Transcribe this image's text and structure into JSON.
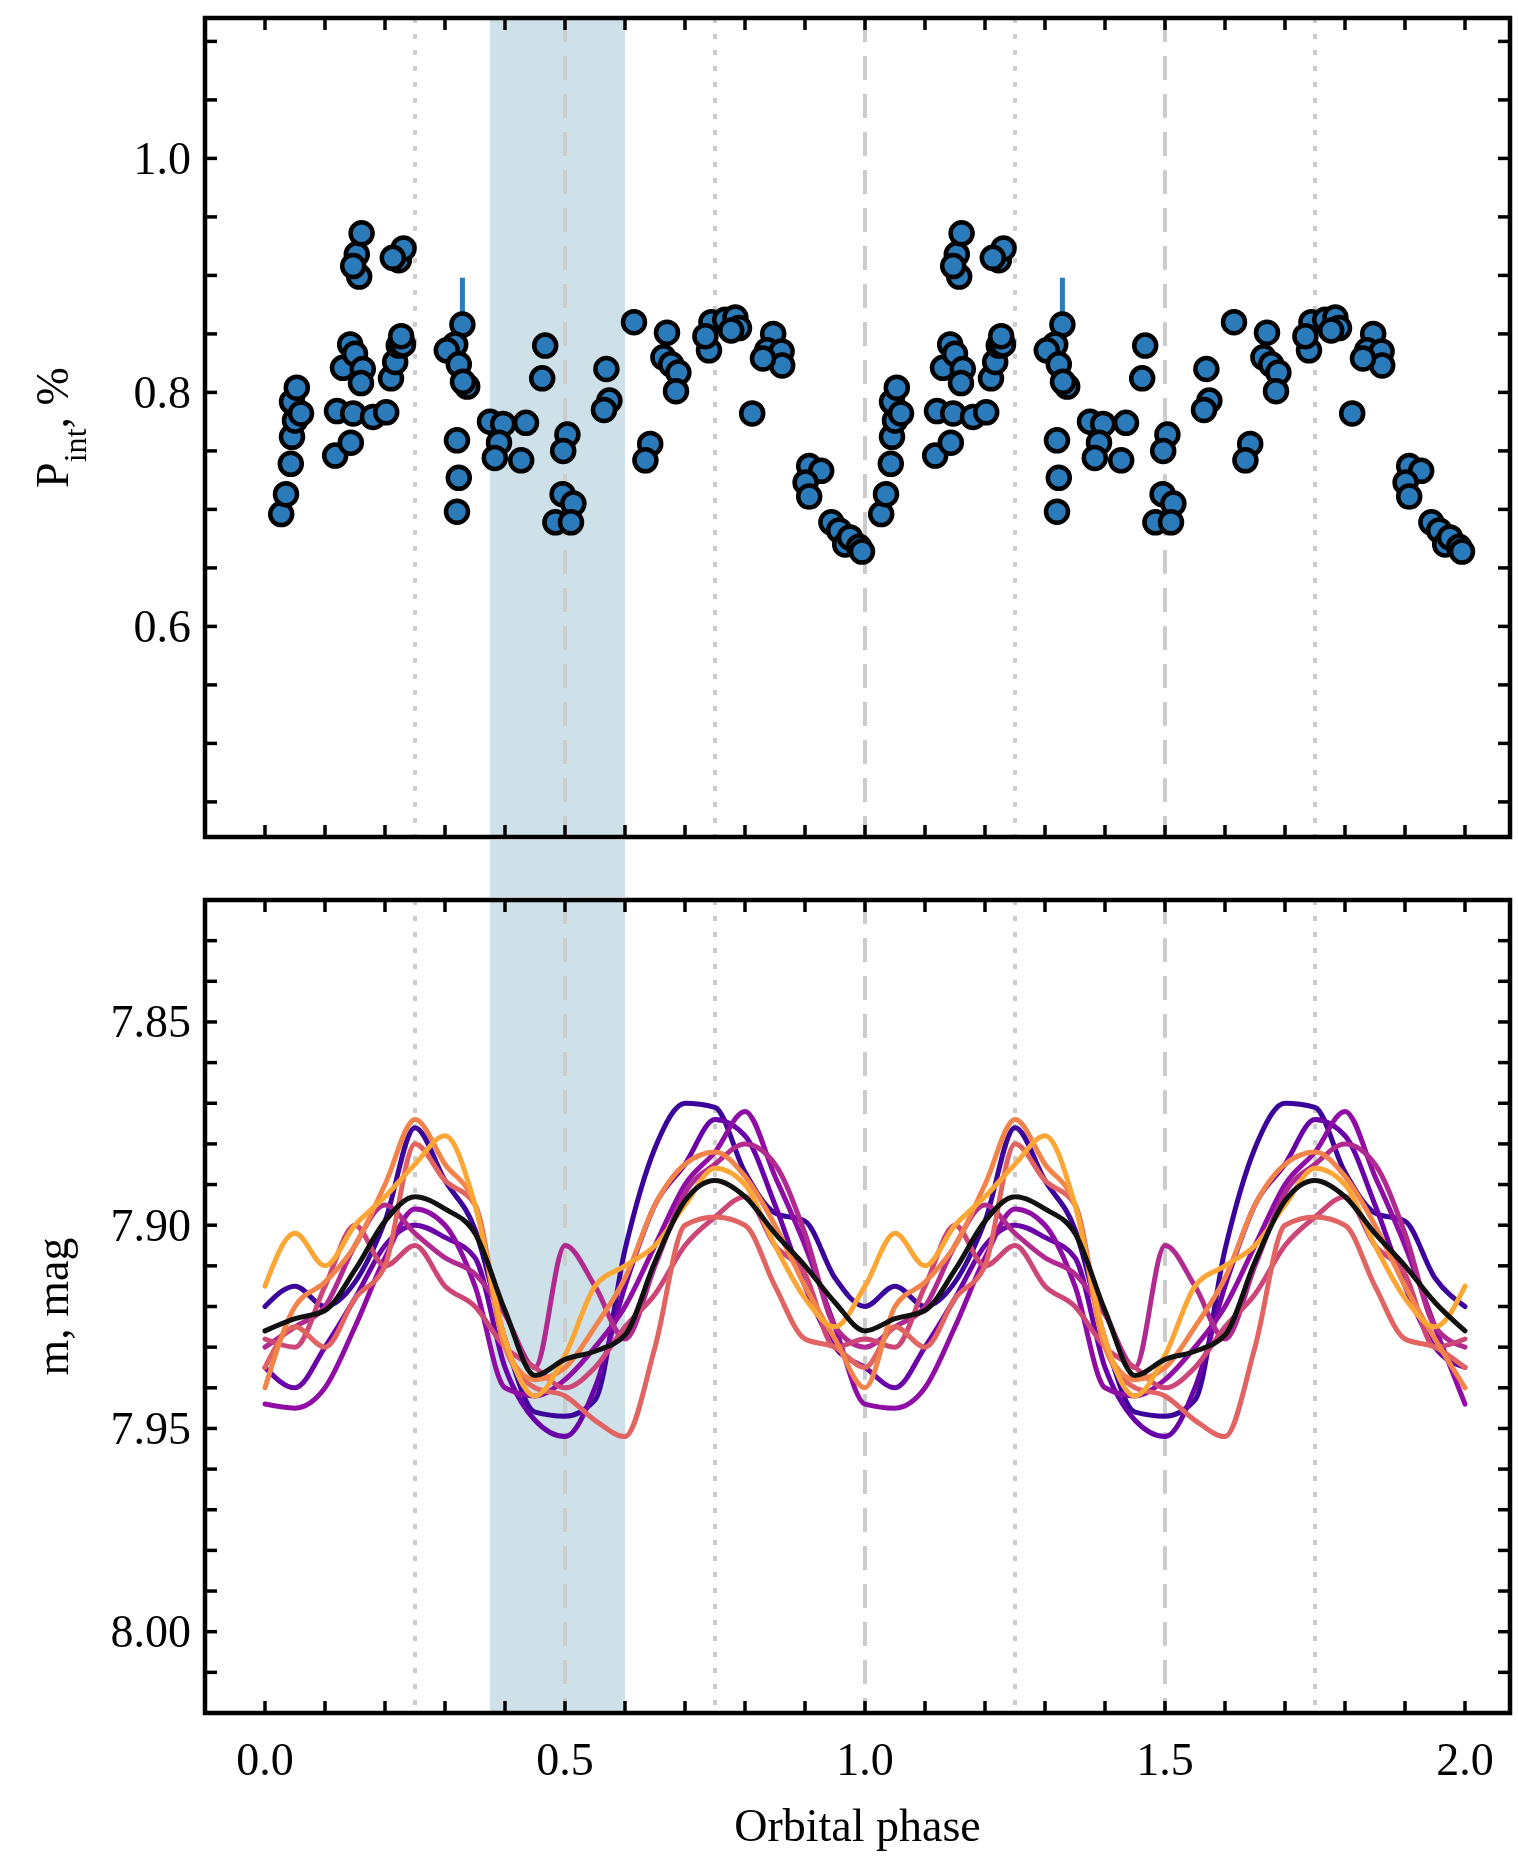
{
  "chart_data": [
    {
      "type": "scatter",
      "ylabel": "P$_{int}$, %",
      "xlim": [
        -0.1,
        2.075
      ],
      "ylim": [
        0.42,
        1.12
      ],
      "tick_labels": "y",
      "marker": "circle",
      "color": "#2b7bba",
      "xticks": [
        {
          "value": 0,
          "label": null
        },
        {
          "value": 0.1,
          "label": null
        },
        {
          "value": 0.2,
          "label": null
        },
        {
          "value": 0.3,
          "label": null
        },
        {
          "value": 0.4,
          "label": null
        },
        {
          "value": 0.5,
          "label": null
        },
        {
          "value": 0.6,
          "label": null
        },
        {
          "value": 0.7,
          "label": null
        },
        {
          "value": 0.8,
          "label": null
        },
        {
          "value": 0.9,
          "label": null
        },
        {
          "value": 1,
          "label": null
        },
        {
          "value": 1.1,
          "label": null
        },
        {
          "value": 1.2,
          "label": null
        },
        {
          "value": 1.3,
          "label": null
        },
        {
          "value": 1.4,
          "label": null
        },
        {
          "value": 1.5,
          "label": null
        },
        {
          "value": 1.6,
          "label": null
        },
        {
          "value": 1.7,
          "label": null
        },
        {
          "value": 1.8,
          "label": null
        },
        {
          "value": 1.9,
          "label": null
        },
        {
          "value": 2,
          "label": null
        }
      ],
      "yticks": [
        {
          "value": 0.45,
          "label": null
        },
        {
          "value": 0.5,
          "label": null
        },
        {
          "value": 0.55,
          "label": null
        },
        {
          "value": 0.6,
          "label": "0.6"
        },
        {
          "value": 0.65,
          "label": null
        },
        {
          "value": 0.7,
          "label": null
        },
        {
          "value": 0.75,
          "label": null
        },
        {
          "value": 0.8,
          "label": "0.8"
        },
        {
          "value": 0.85,
          "label": null
        },
        {
          "value": 0.9,
          "label": null
        },
        {
          "value": 0.95,
          "label": null
        },
        {
          "value": 1.0,
          "label": "1.0"
        },
        {
          "value": 1.05,
          "label": null
        },
        {
          "value": 1.1,
          "label": null
        }
      ],
      "x": [
        0.027,
        0.035,
        0.043,
        0.045,
        0.05,
        0.045,
        0.053,
        0.06,
        0.117,
        0.12,
        0.143,
        0.147,
        0.18,
        0.202,
        0.13,
        0.142,
        0.15,
        0.163,
        0.16,
        0.157,
        0.153,
        0.161,
        0.147,
        0.21,
        0.217,
        0.223,
        0.23,
        0.227,
        0.223,
        0.231,
        0.213,
        0.32,
        0.323,
        0.32,
        0.329,
        0.317,
        0.303,
        0.323,
        0.337,
        0.33,
        0.375,
        0.397,
        0.435,
        0.39,
        0.383,
        0.427,
        0.467,
        0.462,
        0.504,
        0.497,
        0.496,
        0.514,
        0.484,
        0.51,
        0.569,
        0.574,
        0.565,
        0.615,
        0.642,
        0.634,
        0.67,
        0.664,
        0.677,
        0.689,
        0.685,
        0.744,
        0.74,
        0.734,
        0.767,
        0.784,
        0.79,
        0.777,
        0.812,
        0.847,
        0.837,
        0.861,
        0.862,
        0.83,
        0.907,
        0.927,
        0.901,
        0.907,
        0.944,
        0.957,
        0.967,
        0.975,
        0.99,
        0.995,
        1.027,
        1.035,
        1.043,
        1.045,
        1.05,
        1.045,
        1.053,
        1.06,
        1.117,
        1.12,
        1.143,
        1.147,
        1.18,
        1.202,
        1.13,
        1.142,
        1.15,
        1.163,
        1.16,
        1.157,
        1.153,
        1.161,
        1.147,
        1.21,
        1.217,
        1.223,
        1.23,
        1.227,
        1.223,
        1.231,
        1.213,
        1.32,
        1.323,
        1.32,
        1.329,
        1.317,
        1.303,
        1.323,
        1.337,
        1.33,
        1.375,
        1.397,
        1.435,
        1.39,
        1.383,
        1.427,
        1.467,
        1.462,
        1.504,
        1.497,
        1.496,
        1.514,
        1.484,
        1.51,
        1.569,
        1.574,
        1.565,
        1.615,
        1.642,
        1.634,
        1.67,
        1.664,
        1.677,
        1.689,
        1.685,
        1.744,
        1.74,
        1.734,
        1.767,
        1.784,
        1.79,
        1.777,
        1.812,
        1.847,
        1.837,
        1.861,
        1.862,
        1.83,
        1.907,
        1.927,
        1.901,
        1.907,
        1.944,
        1.957,
        1.967,
        1.975,
        1.99,
        1.995
      ],
      "values": [
        0.696,
        0.713,
        0.739,
        0.762,
        0.776,
        0.792,
        0.804,
        0.782,
        0.746,
        0.784,
        0.757,
        0.782,
        0.779,
        0.783,
        0.821,
        0.841,
        0.833,
        0.82,
        0.808,
        0.899,
        0.918,
        0.936,
        0.908,
        0.812,
        0.826,
        0.84,
        0.841,
        0.848,
        0.913,
        0.923,
        0.915,
        0.759,
        0.727,
        0.698,
        0.858,
        0.841,
        0.836,
        0.824,
        0.805,
        0.809,
        0.775,
        0.773,
        0.774,
        0.757,
        0.744,
        0.742,
        0.84,
        0.812,
        0.764,
        0.75,
        0.713,
        0.705,
        0.689,
        0.689,
        0.82,
        0.793,
        0.785,
        0.86,
        0.756,
        0.742,
        0.851,
        0.83,
        0.824,
        0.817,
        0.801,
        0.86,
        0.836,
        0.848,
        0.862,
        0.864,
        0.855,
        0.853,
        0.782,
        0.85,
        0.836,
        0.835,
        0.823,
        0.829,
        0.737,
        0.733,
        0.723,
        0.711,
        0.689,
        0.682,
        0.67,
        0.676,
        0.668,
        0.664,
        0.696,
        0.713,
        0.739,
        0.762,
        0.776,
        0.792,
        0.804,
        0.782,
        0.746,
        0.784,
        0.757,
        0.782,
        0.779,
        0.783,
        0.821,
        0.841,
        0.833,
        0.82,
        0.808,
        0.899,
        0.918,
        0.936,
        0.908,
        0.812,
        0.826,
        0.84,
        0.841,
        0.848,
        0.913,
        0.923,
        0.915,
        0.759,
        0.727,
        0.698,
        0.858,
        0.841,
        0.836,
        0.824,
        0.805,
        0.809,
        0.775,
        0.773,
        0.774,
        0.757,
        0.744,
        0.742,
        0.84,
        0.812,
        0.764,
        0.75,
        0.713,
        0.705,
        0.689,
        0.689,
        0.82,
        0.793,
        0.785,
        0.86,
        0.756,
        0.742,
        0.851,
        0.83,
        0.824,
        0.817,
        0.801,
        0.86,
        0.836,
        0.848,
        0.862,
        0.864,
        0.855,
        0.853,
        0.782,
        0.85,
        0.836,
        0.835,
        0.823,
        0.829,
        0.737,
        0.733,
        0.723,
        0.711,
        0.689,
        0.682,
        0.67,
        0.676,
        0.668,
        0.664
      ],
      "errors": [
        null,
        null,
        null,
        null,
        null,
        null,
        null,
        null,
        null,
        null,
        null,
        null,
        null,
        null,
        null,
        null,
        null,
        null,
        null,
        null,
        null,
        null,
        null,
        null,
        null,
        null,
        null,
        null,
        null,
        null,
        null,
        null,
        null,
        null,
        0.04,
        null,
        null,
        null,
        null,
        null,
        null,
        null,
        null,
        null,
        null,
        null,
        null,
        null,
        null,
        null,
        null,
        null,
        null,
        null,
        null,
        null,
        null,
        null,
        null,
        null,
        null,
        null,
        null,
        null,
        null,
        null,
        null,
        null,
        null,
        null,
        null,
        null,
        null,
        null,
        null,
        null,
        null,
        null,
        null,
        null,
        null,
        null,
        null,
        null,
        null,
        null,
        null,
        null,
        null,
        null,
        null,
        null,
        null,
        null,
        null,
        null,
        null,
        null,
        null,
        null,
        null,
        null,
        null,
        null,
        null,
        null,
        null,
        null,
        null,
        null,
        null,
        null,
        null,
        null,
        null,
        null,
        null,
        null,
        null,
        null,
        null,
        null,
        0.04,
        null,
        null,
        null,
        null,
        null,
        null,
        null,
        null,
        null,
        null,
        null,
        null,
        null,
        null,
        null,
        null,
        null,
        null,
        null,
        null,
        null,
        null,
        null,
        null,
        null,
        null,
        null,
        null,
        null,
        null,
        null,
        null,
        null,
        null,
        null,
        null,
        null,
        null,
        null,
        null,
        null,
        null,
        null,
        null,
        null,
        null,
        null,
        null,
        null,
        null,
        null,
        null,
        null
      ],
      "ref_lines": [
        {
          "axis": "x",
          "value": 0.25,
          "color": "#cccccc",
          "line_style": "dotted"
        },
        {
          "axis": "x",
          "value": 0.5,
          "color": "#cccccc",
          "line_style": "dashed"
        },
        {
          "axis": "x",
          "value": 0.75,
          "color": "#cccccc",
          "line_style": "dotted"
        },
        {
          "axis": "x",
          "value": 1.0,
          "color": "#cccccc",
          "line_style": "dashed"
        },
        {
          "axis": "x",
          "value": 1.25,
          "color": "#cccccc",
          "line_style": "dotted"
        },
        {
          "axis": "x",
          "value": 1.5,
          "color": "#cccccc",
          "line_style": "dashed"
        },
        {
          "axis": "x",
          "value": 1.75,
          "color": "#cccccc",
          "line_style": "dotted"
        }
      ],
      "bands": [
        {
          "axis": "x",
          "from": 0.375,
          "to": 0.6,
          "color": "#a0c3d2"
        }
      ]
    },
    {
      "type": "line",
      "xlabel": "Orbital phase",
      "ylabel": "m, mag",
      "xlim": [
        -0.1,
        2.075
      ],
      "ylim": [
        8.02,
        7.82
      ],
      "line_style": "solid",
      "xticks": [
        {
          "value": 0,
          "label": "0.0"
        },
        {
          "value": 0.1,
          "label": null
        },
        {
          "value": 0.2,
          "label": null
        },
        {
          "value": 0.3,
          "label": null
        },
        {
          "value": 0.4,
          "label": null
        },
        {
          "value": 0.5,
          "label": "0.5"
        },
        {
          "value": 0.6,
          "label": null
        },
        {
          "value": 0.7,
          "label": null
        },
        {
          "value": 0.8,
          "label": null
        },
        {
          "value": 0.9,
          "label": null
        },
        {
          "value": 1,
          "label": "1.0"
        },
        {
          "value": 1.1,
          "label": null
        },
        {
          "value": 1.2,
          "label": null
        },
        {
          "value": 1.3,
          "label": null
        },
        {
          "value": 1.4,
          "label": null
        },
        {
          "value": 1.5,
          "label": "1.5"
        },
        {
          "value": 1.6,
          "label": null
        },
        {
          "value": 1.7,
          "label": null
        },
        {
          "value": 1.8,
          "label": null
        },
        {
          "value": 1.9,
          "label": null
        },
        {
          "value": 2,
          "label": "2.0"
        }
      ],
      "yticks": [
        {
          "value": 7.83,
          "label": null
        },
        {
          "value": 7.84,
          "label": null
        },
        {
          "value": 7.85,
          "label": "7.85"
        },
        {
          "value": 7.86,
          "label": null
        },
        {
          "value": 7.87,
          "label": null
        },
        {
          "value": 7.88,
          "label": null
        },
        {
          "value": 7.89,
          "label": null
        },
        {
          "value": 7.9,
          "label": "7.90"
        },
        {
          "value": 7.91,
          "label": null
        },
        {
          "value": 7.92,
          "label": null
        },
        {
          "value": 7.93,
          "label": null
        },
        {
          "value": 7.94,
          "label": null
        },
        {
          "value": 7.95,
          "label": "7.95"
        },
        {
          "value": 7.96,
          "label": null
        },
        {
          "value": 7.97,
          "label": null
        },
        {
          "value": 7.98,
          "label": null
        },
        {
          "value": 7.99,
          "label": null
        },
        {
          "value": 8.0,
          "label": "8.00"
        },
        {
          "value": 8.01,
          "label": null
        }
      ],
      "x": [
        0,
        0.05,
        0.1,
        0.15,
        0.2,
        0.25,
        0.3,
        0.35,
        0.4,
        0.45,
        0.5,
        0.55,
        0.6,
        0.65,
        0.7,
        0.75,
        0.8,
        0.85,
        0.9,
        0.95,
        1.0,
        1.05,
        1.1,
        1.15,
        1.2,
        1.25,
        1.3,
        1.35,
        1.4,
        1.45,
        1.5,
        1.55,
        1.6,
        1.65,
        1.7,
        1.75,
        1.8,
        1.85,
        1.9,
        1.95,
        2.0
      ],
      "series": [
        {
          "color": "#3b049a",
          "values": [
            7.92,
            7.915,
            7.92,
            7.914,
            7.899,
            7.876,
            7.889,
            7.901,
            7.928,
            7.946,
            7.947,
            7.943,
            7.906,
            7.881,
            7.87,
            7.871,
            7.887,
            7.897,
            7.899,
            7.913,
            7.92,
            7.915,
            7.92,
            7.914,
            7.899,
            7.876,
            7.889,
            7.901,
            7.928,
            7.946,
            7.947,
            7.943,
            7.906,
            7.881,
            7.87,
            7.871,
            7.887,
            7.897,
            7.899,
            7.913,
            7.92
          ]
        },
        {
          "color": "#6a00a8",
          "values": [
            7.935,
            7.94,
            7.93,
            7.918,
            7.905,
            7.9,
            7.903,
            7.908,
            7.935,
            7.948,
            7.952,
            7.94,
            7.915,
            7.895,
            7.885,
            7.874,
            7.878,
            7.895,
            7.915,
            7.93,
            7.935,
            7.94,
            7.93,
            7.918,
            7.905,
            7.9,
            7.903,
            7.908,
            7.935,
            7.948,
            7.952,
            7.94,
            7.915,
            7.895,
            7.885,
            7.874,
            7.878,
            7.895,
            7.915,
            7.93,
            7.935
          ]
        },
        {
          "color": "#8f0da4",
          "values": [
            7.944,
            7.945,
            7.94,
            7.925,
            7.908,
            7.896,
            7.9,
            7.915,
            7.94,
            7.942,
            7.938,
            7.93,
            7.92,
            7.905,
            7.89,
            7.882,
            7.872,
            7.888,
            7.905,
            7.925,
            7.944,
            7.945,
            7.94,
            7.925,
            7.908,
            7.896,
            7.9,
            7.915,
            7.94,
            7.942,
            7.938,
            7.93,
            7.92,
            7.905,
            7.89,
            7.882,
            7.872,
            7.888,
            7.905,
            7.925,
            7.944
          ]
        },
        {
          "color": "#b12a90",
          "values": [
            7.93,
            7.925,
            7.92,
            7.905,
            7.895,
            7.902,
            7.908,
            7.912,
            7.922,
            7.935,
            7.905,
            7.915,
            7.928,
            7.91,
            7.892,
            7.885,
            7.88,
            7.885,
            7.902,
            7.925,
            7.93,
            7.925,
            7.92,
            7.905,
            7.895,
            7.902,
            7.908,
            7.912,
            7.922,
            7.935,
            7.905,
            7.915,
            7.928,
            7.91,
            7.892,
            7.885,
            7.88,
            7.885,
            7.902,
            7.925,
            7.93
          ]
        },
        {
          "color": "#cc4778",
          "values": [
            7.928,
            7.93,
            7.915,
            7.9,
            7.91,
            7.905,
            7.915,
            7.92,
            7.93,
            7.935,
            7.94,
            7.935,
            7.925,
            7.917,
            7.905,
            7.898,
            7.893,
            7.905,
            7.912,
            7.93,
            7.928,
            7.93,
            7.915,
            7.9,
            7.91,
            7.905,
            7.915,
            7.92,
            7.93,
            7.935,
            7.94,
            7.935,
            7.925,
            7.917,
            7.905,
            7.898,
            7.893,
            7.905,
            7.912,
            7.93,
            7.928
          ]
        },
        {
          "color": "#e16462",
          "values": [
            7.935,
            7.925,
            7.93,
            7.918,
            7.91,
            7.88,
            7.889,
            7.895,
            7.93,
            7.94,
            7.942,
            7.948,
            7.952,
            7.93,
            7.9,
            7.898,
            7.9,
            7.915,
            7.928,
            7.93,
            7.935,
            7.925,
            7.93,
            7.918,
            7.91,
            7.88,
            7.889,
            7.895,
            7.93,
            7.94,
            7.942,
            7.948,
            7.952,
            7.93,
            7.9,
            7.898,
            7.9,
            7.915,
            7.928,
            7.93,
            7.935
          ]
        },
        {
          "color": "#f2844b",
          "values": [
            7.94,
            7.92,
            7.914,
            7.905,
            7.89,
            7.874,
            7.885,
            7.895,
            7.93,
            7.938,
            7.935,
            7.925,
            7.913,
            7.895,
            7.885,
            7.882,
            7.888,
            7.9,
            7.915,
            7.928,
            7.94,
            7.92,
            7.914,
            7.905,
            7.89,
            7.874,
            7.885,
            7.895,
            7.93,
            7.938,
            7.935,
            7.925,
            7.913,
            7.895,
            7.885,
            7.882,
            7.888,
            7.9,
            7.915,
            7.928,
            7.94
          ]
        },
        {
          "color": "#fca636",
          "values": [
            7.915,
            7.902,
            7.91,
            7.9,
            7.893,
            7.885,
            7.878,
            7.895,
            7.928,
            7.942,
            7.932,
            7.915,
            7.91,
            7.905,
            7.895,
            7.886,
            7.89,
            7.905,
            7.918,
            7.925,
            7.915,
            7.902,
            7.91,
            7.9,
            7.893,
            7.885,
            7.878,
            7.895,
            7.928,
            7.942,
            7.932,
            7.915,
            7.91,
            7.905,
            7.895,
            7.886,
            7.89,
            7.905,
            7.918,
            7.925,
            7.915
          ]
        },
        {
          "color": "#111111",
          "values": [
            7.926,
            7.923,
            7.921,
            7.911,
            7.899,
            7.893,
            7.896,
            7.902,
            7.921,
            7.937,
            7.933,
            7.931,
            7.927,
            7.909,
            7.894,
            7.889,
            7.893,
            7.902,
            7.91,
            7.919,
            7.926,
            7.923,
            7.921,
            7.911,
            7.899,
            7.893,
            7.896,
            7.902,
            7.921,
            7.937,
            7.933,
            7.931,
            7.927,
            7.909,
            7.894,
            7.889,
            7.893,
            7.902,
            7.91,
            7.919,
            7.926
          ]
        }
      ],
      "ref_lines": [
        {
          "axis": "x",
          "value": 0.25,
          "color": "#cccccc",
          "line_style": "dotted"
        },
        {
          "axis": "x",
          "value": 0.5,
          "color": "#cccccc",
          "line_style": "dashed"
        },
        {
          "axis": "x",
          "value": 0.75,
          "color": "#cccccc",
          "line_style": "dotted"
        },
        {
          "axis": "x",
          "value": 1.0,
          "color": "#cccccc",
          "line_style": "dashed"
        },
        {
          "axis": "x",
          "value": 1.25,
          "color": "#cccccc",
          "line_style": "dotted"
        },
        {
          "axis": "x",
          "value": 1.5,
          "color": "#cccccc",
          "line_style": "dashed"
        },
        {
          "axis": "x",
          "value": 1.75,
          "color": "#cccccc",
          "line_style": "dotted"
        }
      ],
      "bands": [
        {
          "axis": "x",
          "from": 0.375,
          "to": 0.6,
          "color": "#a0c3d2"
        }
      ]
    }
  ]
}
